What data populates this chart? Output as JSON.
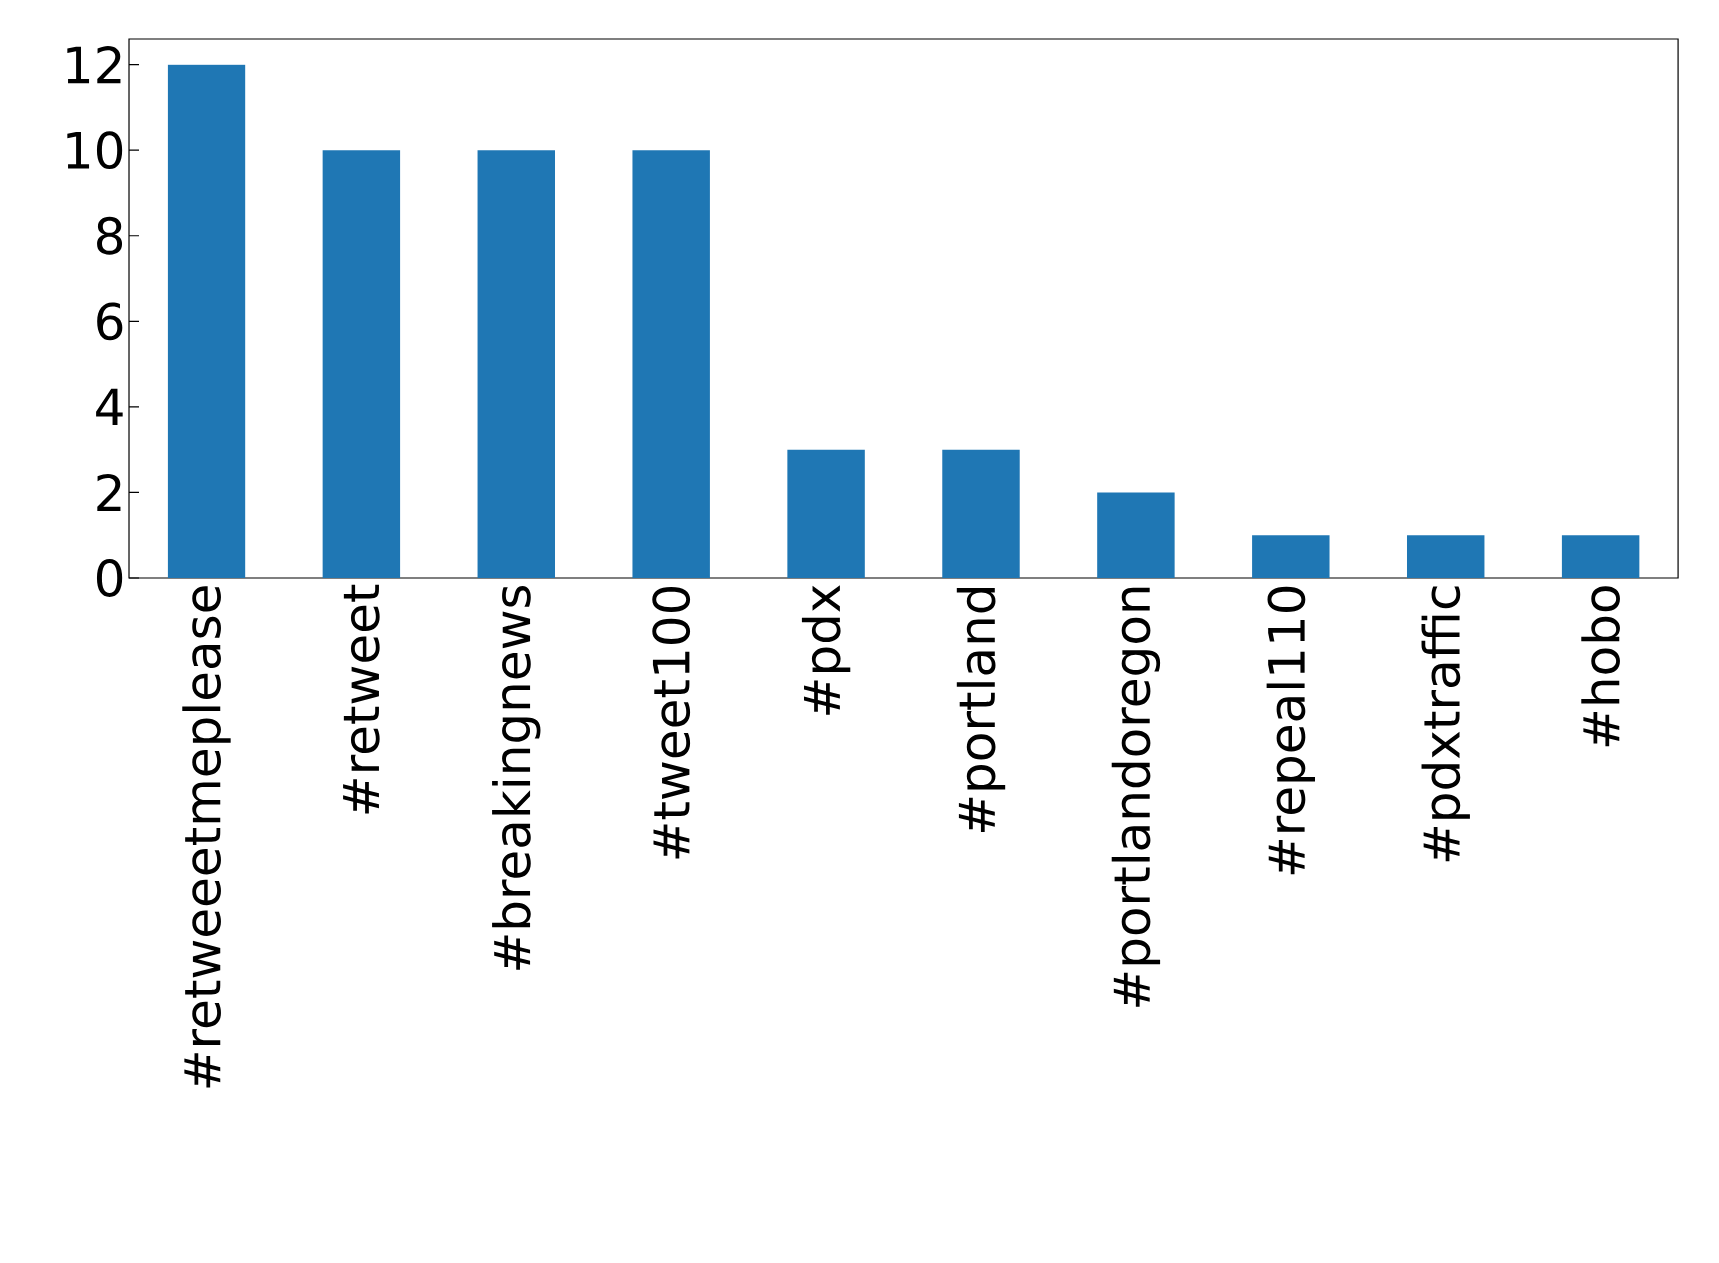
{
  "chart_data": {
    "type": "bar",
    "categories": [
      "#retweeetmeplease",
      "#retweet",
      "#breakingnews",
      "#tweet100",
      "#pdx",
      "#portland",
      "#portlandoregon",
      "#repeal110",
      "#pdxtraffic",
      "#hobo"
    ],
    "values": [
      12,
      10,
      10,
      10,
      3,
      3,
      2,
      1,
      1,
      1
    ],
    "color": "#1f77b4",
    "ylim": [
      0,
      12.6
    ],
    "yticks": [
      0,
      2,
      4,
      6,
      8,
      10,
      12
    ],
    "grid": false
  }
}
